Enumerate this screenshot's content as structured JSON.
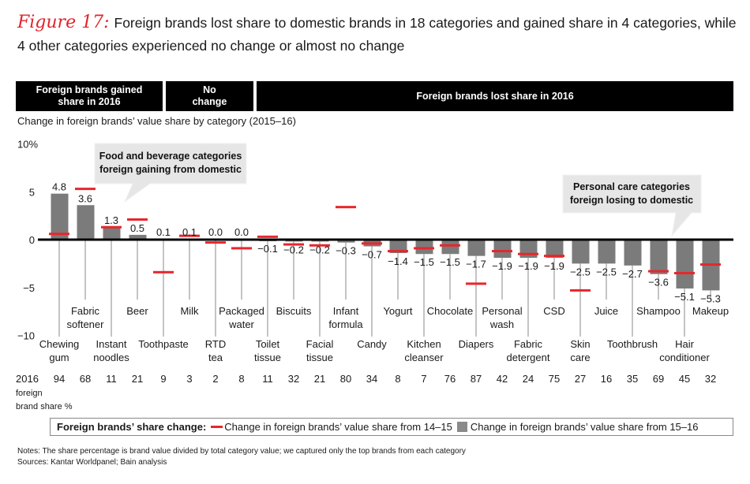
{
  "header": {
    "figure_label": "Figure 17:",
    "title": "Foreign brands lost share to domestic brands in 18 categories and gained share in 4 categories, while 4 other categories experienced no change or almost no change"
  },
  "group_headers": [
    {
      "label": "Foreign brands gained share in 2016"
    },
    {
      "label": "No change"
    },
    {
      "label": "Foreign brands lost share in 2016"
    }
  ],
  "subtitle": "Change in foreign brands’ value share by category (2015–16)",
  "callouts": [
    {
      "text_line1": "Food and beverage categories",
      "text_line2": "foreign gaining from domestic"
    },
    {
      "text_line1": "Personal care categories",
      "text_line2": "foreign losing to domestic"
    }
  ],
  "share_row_label": [
    "2016",
    "foreign",
    "brand share %"
  ],
  "legend": {
    "title": "Foreign brands’ share change:",
    "red_label": "Change in foreign brands’ value share from 14–15",
    "gray_label": "Change in foreign brands’ value share from 15–16"
  },
  "notes": {
    "line1": "Notes: The share percentage is brand value divided by total category value; we captured only the top brands from each category",
    "line2": "Sources: Kantar Worldpanel; Bain analysis"
  },
  "colors": {
    "bar": "#7b7b7b",
    "marker": "#e8262b",
    "header_bg": "#000000",
    "callout_bg": "#e6e6e6"
  },
  "chart_data": {
    "type": "bar",
    "title": "Change in foreign brands’ value share by category (2015–16)",
    "xlabel": "",
    "ylabel": "%",
    "ylim": [
      -10,
      10
    ],
    "yticks": [
      10,
      5,
      0,
      -5,
      -10
    ],
    "ytick_labels": [
      "10%",
      "5",
      "0",
      "−5",
      "−10"
    ],
    "categories": [
      [
        "Chewing",
        "gum"
      ],
      [
        "Fabric",
        "softener"
      ],
      [
        "Instant",
        "noodles"
      ],
      [
        "Beer"
      ],
      [
        "Toothpaste"
      ],
      [
        "Milk"
      ],
      [
        "RTD",
        "tea"
      ],
      [
        "Packaged",
        "water"
      ],
      [
        "Toilet",
        "tissue"
      ],
      [
        "Biscuits"
      ],
      [
        "Facial",
        "tissue"
      ],
      [
        "Infant",
        "formula"
      ],
      [
        "Candy"
      ],
      [
        "Yogurt"
      ],
      [
        "Kitchen",
        "cleanser"
      ],
      [
        "Chocolate"
      ],
      [
        "Diapers"
      ],
      [
        "Personal",
        "wash"
      ],
      [
        "Fabric",
        "detergent"
      ],
      [
        "CSD"
      ],
      [
        "Skin",
        "care"
      ],
      [
        "Juice"
      ],
      [
        "Toothbrush"
      ],
      [
        "Shampoo"
      ],
      [
        "Hair",
        "conditioner"
      ],
      [
        "Makeup"
      ]
    ],
    "series": [
      {
        "name": "Change in foreign brands’ value share from 15–16",
        "type": "bar",
        "values": [
          4.8,
          3.6,
          1.3,
          0.5,
          0.1,
          0.1,
          0.0,
          0.0,
          -0.1,
          -0.2,
          -0.2,
          -0.3,
          -0.7,
          -1.4,
          -1.5,
          -1.5,
          -1.7,
          -1.9,
          -1.9,
          -1.9,
          -2.5,
          -2.5,
          -2.7,
          -3.6,
          -5.1,
          -5.3
        ],
        "labels": [
          "4.8",
          "3.6",
          "1.3",
          "0.5",
          "0.1",
          "0.1",
          "0.0",
          "0.0",
          "−0.1",
          "−0.2",
          "−0.2",
          "−0.3",
          "−0.7",
          "−1.4",
          "−1.5",
          "−1.5",
          "−1.7",
          "−1.9",
          "−1.9",
          "−1.9",
          "−2.5",
          "−2.5",
          "−2.7",
          "−3.6",
          "−5.1",
          "−5.3"
        ]
      },
      {
        "name": "Change in foreign brands’ value share from 14–15",
        "type": "marker",
        "values": [
          0.6,
          5.3,
          1.3,
          2.1,
          -3.4,
          0.4,
          -0.3,
          -0.9,
          0.3,
          -0.5,
          -0.6,
          3.4,
          -0.4,
          -1.2,
          -0.9,
          -0.6,
          -4.6,
          -1.2,
          -1.5,
          -1.7,
          -5.3,
          null,
          null,
          -3.3,
          -3.5,
          -2.6
        ]
      }
    ],
    "share_2016": [
      94,
      68,
      11,
      21,
      9,
      3,
      2,
      8,
      11,
      32,
      21,
      80,
      34,
      8,
      7,
      76,
      87,
      42,
      24,
      75,
      27,
      16,
      35,
      69,
      45,
      32
    ],
    "grid": false,
    "legend_position": "bottom"
  }
}
